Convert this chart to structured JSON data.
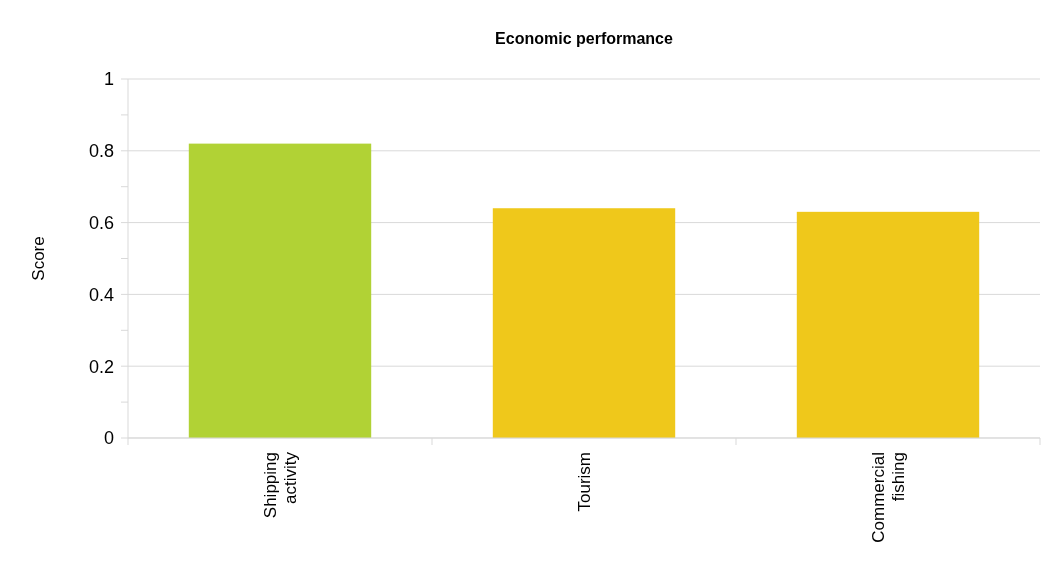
{
  "chart_data": {
    "type": "bar",
    "title": "Economic performance",
    "ylabel": "Score",
    "categories": [
      "Shipping activity",
      "Tourism",
      "Commercial fishing"
    ],
    "values": [
      0.82,
      0.64,
      0.63
    ],
    "colors": [
      "#b1d235",
      "#efc81b",
      "#efc81b"
    ],
    "ylim": [
      0,
      1
    ],
    "yticks": [
      0,
      {
        "value": 0.1,
        "label": null
      },
      0.2,
      {
        "value": 0.3,
        "label": null
      },
      0.4,
      {
        "value": 0.5,
        "label": null
      },
      0.6,
      {
        "value": 0.7,
        "label": null
      },
      0.8,
      {
        "value": 0.9,
        "label": null
      },
      1
    ],
    "grid": "y"
  }
}
